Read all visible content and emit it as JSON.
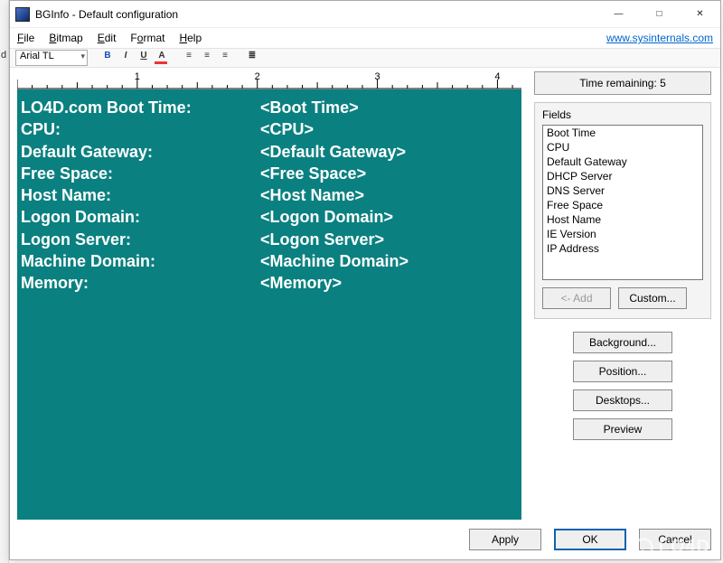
{
  "window": {
    "title": "BGInfo - Default configuration"
  },
  "menu": {
    "file": "File",
    "bitmap": "Bitmap",
    "edit": "Edit",
    "format": "Format",
    "help": "Help",
    "link": "www.sysinternals.com"
  },
  "toolbar": {
    "font_name": "Arial TL"
  },
  "ruler": {
    "marks": [
      "1",
      "2",
      "3",
      "4"
    ]
  },
  "editor": {
    "bg_color": "#0b8080",
    "text_color": "#ffffff",
    "rows": [
      {
        "label": "LO4D.com Boot Time:",
        "value": "<Boot Time>"
      },
      {
        "label": "CPU:",
        "value": "<CPU>"
      },
      {
        "label": "Default Gateway:",
        "value": "<Default Gateway>"
      },
      {
        "label": "Free Space:",
        "value": "<Free Space>"
      },
      {
        "label": "Host Name:",
        "value": "<Host Name>"
      },
      {
        "label": "Logon Domain:",
        "value": "<Logon Domain>"
      },
      {
        "label": "Logon Server:",
        "value": "<Logon Server>"
      },
      {
        "label": "Machine Domain:",
        "value": "<Machine Domain>"
      },
      {
        "label": "Memory:",
        "value": "<Memory>"
      }
    ]
  },
  "right": {
    "time_remaining": "Time remaining: 5",
    "fields_label": "Fields",
    "fields": [
      "Boot Time",
      "CPU",
      "Default Gateway",
      "DHCP Server",
      "DNS Server",
      "Free Space",
      "Host Name",
      "IE Version",
      "IP Address"
    ],
    "add_btn": "<- Add",
    "custom_btn": "Custom...",
    "background_btn": "Background...",
    "position_btn": "Position...",
    "desktops_btn": "Desktops...",
    "preview_btn": "Preview"
  },
  "bottom": {
    "apply": "Apply",
    "ok": "OK",
    "cancel": "Cancel"
  },
  "watermark": "LO4D"
}
